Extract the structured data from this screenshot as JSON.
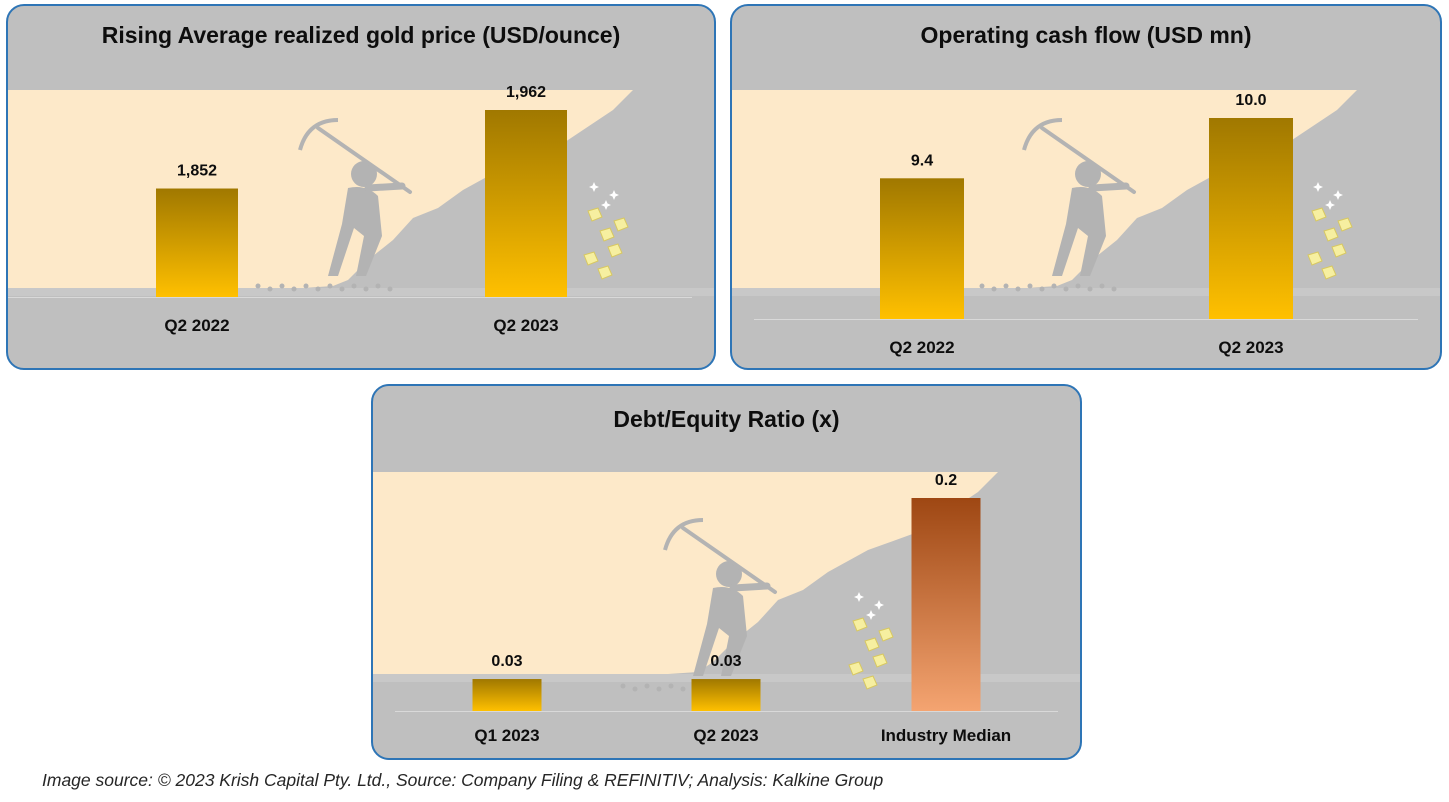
{
  "chart_data": [
    {
      "type": "bar",
      "title": "Rising Average realized gold price (USD/ounce)",
      "categories": [
        "Q2 2022",
        "Q2 2023"
      ],
      "values": [
        1852,
        1962
      ],
      "value_labels": [
        "1,852",
        "1,962"
      ],
      "grid": false,
      "legend": "none",
      "colors": [
        "#a07800",
        "#ffc000"
      ]
    },
    {
      "type": "bar",
      "title": "Operating cash flow (USD mn)",
      "categories": [
        "Q2 2022",
        "Q2 2023"
      ],
      "values": [
        9.4,
        10.0
      ],
      "value_labels": [
        "9.4",
        "10.0"
      ],
      "grid": false,
      "legend": "none",
      "colors": [
        "#a07800",
        "#ffc000"
      ]
    },
    {
      "type": "bar",
      "title": "Debt/Equity Ratio (x)",
      "categories": [
        "Q1 2023",
        "Q2 2023",
        "Industry Median"
      ],
      "values": [
        0.03,
        0.03,
        0.2
      ],
      "value_labels": [
        "0.03",
        "0.03",
        "0.2"
      ],
      "grid": false,
      "legend": "none",
      "colors": [
        "#a07800",
        "#ffc000"
      ],
      "highlight_colors": [
        "#9e4713",
        "#f4a471"
      ]
    }
  ],
  "footer": {
    "text": "Image source: © 2023 Krish Capital Pty. Ltd., Source: Company Filing & REFINITIV; Analysis: Kalkine Group"
  },
  "theme": {
    "panel_bg": "#bfbfbf",
    "panel_border": "#2e75b6",
    "cave_color": "#fde9c9",
    "miner_color": "#b3b3b3",
    "axis_color": "#d9d9d9"
  }
}
